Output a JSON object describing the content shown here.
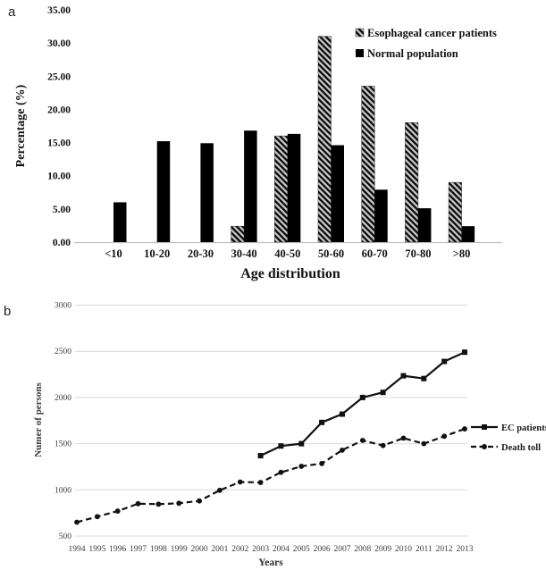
{
  "figure": {
    "panel_a_label": "a",
    "panel_b_label": "b"
  },
  "colors": {
    "ink": "#000000",
    "hatch_background": "#c6c6c6",
    "grid_line": "#d9d9d9",
    "axis_line": "#bfbfbf"
  },
  "chart_data": [
    {
      "panel": "a",
      "type": "bar",
      "title": "",
      "xlabel": "Age distribution",
      "ylabel": "Percentage (%)",
      "ylim": [
        0,
        35
      ],
      "ytick_step": 5,
      "ytick_format": "two-decimals",
      "grid": false,
      "legend_position": "top-right",
      "categories": [
        "<10",
        "10-20",
        "20-30",
        "30-40",
        "40-50",
        "50-60",
        "60-70",
        "70-80",
        ">80"
      ],
      "series": [
        {
          "name": "Esophageal cancer patients",
          "style": "hatched",
          "values": [
            0,
            0,
            0,
            2.4,
            16.0,
            31.0,
            23.5,
            18.0,
            9.0
          ]
        },
        {
          "name": "Normal population",
          "style": "solid-black",
          "values": [
            6.0,
            15.2,
            14.9,
            16.8,
            16.3,
            14.6,
            7.9,
            5.1,
            2.4
          ]
        }
      ]
    },
    {
      "panel": "b",
      "type": "line",
      "title": "",
      "xlabel": "Years",
      "ylabel": "Numer of persons",
      "ylim": [
        500,
        3000
      ],
      "ytick_step": 500,
      "grid": true,
      "legend_position": "right",
      "x": [
        1994,
        1995,
        1996,
        1997,
        1998,
        1999,
        2000,
        2001,
        2002,
        2003,
        2004,
        2005,
        2006,
        2007,
        2008,
        2009,
        2010,
        2011,
        2012,
        2013
      ],
      "series": [
        {
          "name": "EC patients",
          "style": "solid-line-square-marker",
          "values": [
            null,
            null,
            null,
            null,
            null,
            null,
            null,
            null,
            null,
            1370,
            1475,
            1500,
            1730,
            1820,
            2000,
            2055,
            2235,
            2205,
            2390,
            2490
          ]
        },
        {
          "name": "Death toll",
          "style": "dashed-line-circle-marker",
          "values": [
            650,
            710,
            770,
            850,
            845,
            855,
            880,
            995,
            1085,
            1080,
            1190,
            1255,
            1285,
            1430,
            1535,
            1480,
            1560,
            1500,
            1580,
            1660
          ]
        }
      ]
    }
  ]
}
